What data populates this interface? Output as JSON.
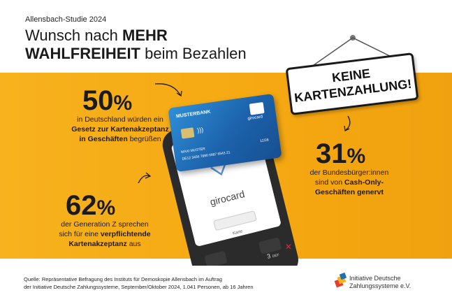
{
  "header": {
    "study": "Allensbach-Studie 2024",
    "title_line1_regular": "Wunsch nach ",
    "title_line1_bold": "MEHR",
    "title_line2_bold": "WAHLFREIHEIT",
    "title_line2_regular": " beim Bezahlen"
  },
  "sign": {
    "line1": "KEINE",
    "line2": "KARTENZAHLUNG!"
  },
  "stats": [
    {
      "value": "50",
      "unit": "%",
      "text1": "in Deutschland würden ein",
      "text2_bold": "Gesetz zur Kartenakzeptanz",
      "text3_bold": "in Geschäften",
      "text3_regular": " begrüßen"
    },
    {
      "value": "31",
      "unit": "%",
      "text1": "der Bundesbürger:innen",
      "text2_regular": "sind von ",
      "text2_bold": "Cash-Only-",
      "text3_bold": "Geschäften genervt"
    },
    {
      "value": "62",
      "unit": "%",
      "text1": "der Generation Z sprechen",
      "text2_regular": "sich für eine ",
      "text2_bold": "verpflichtende",
      "text3_bold": "Kartenakzeptanz",
      "text3_regular": " aus"
    }
  ],
  "card": {
    "bank": "MUSTERBANK",
    "brand": "girocard",
    "holder": "MAXI MUSTER",
    "number": "DE12 3456 7890 0987 6543 21",
    "expiry": "12/28"
  },
  "terminal": {
    "brand": "girocard",
    "button": "Karte",
    "key3": "3",
    "key3_sub": "DEF"
  },
  "footer": {
    "source_line1": "Quelle: Repräsentative Befragung des Instituts für Demoskopie Allensbach im Auftrag",
    "source_line2": "der Initiative Deutsche Zahlungssysteme, September/Oktober 2024, 1.041 Personen, ab 16 Jahren",
    "logo_line1": "Initiative Deutsche",
    "logo_line2": "Zahlungssysteme e.V."
  },
  "colors": {
    "band": "#f5a811",
    "text": "#1b1b1b",
    "card_blue": "#1f6fb5",
    "terminal": "#2a2a2a"
  }
}
